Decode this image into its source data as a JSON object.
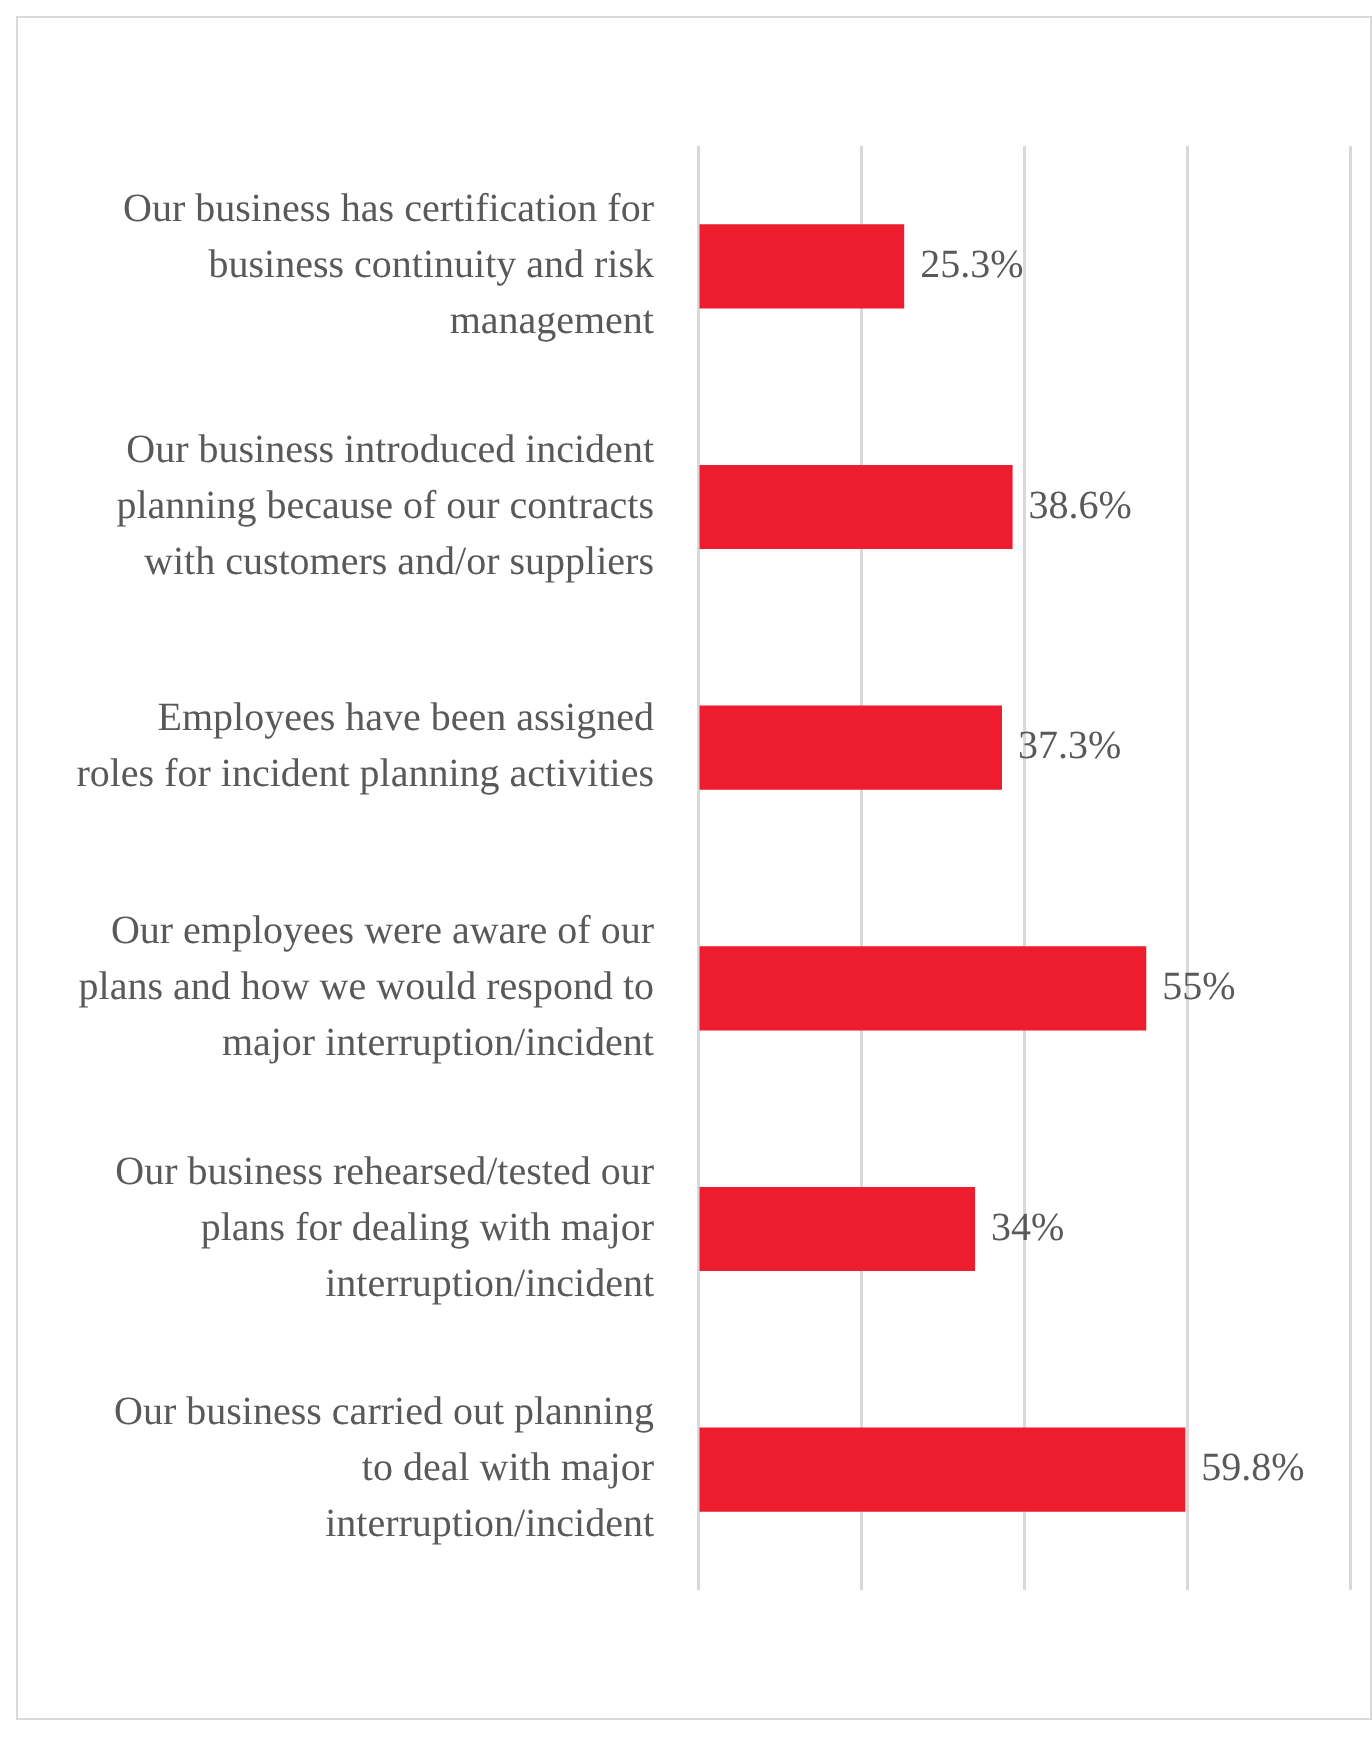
{
  "chart_data": {
    "type": "bar",
    "orientation": "horizontal",
    "categories": [
      "Our business has certification for business continuity and risk management",
      "Our business introduced incident planning because of our contracts with customers and/or suppliers",
      "Employees have been assigned roles for incident planning activities",
      "Our employees were aware of our plans and how we would respond to major interruption/incident",
      "Our business rehearsed/tested our plans for dealing with major interruption/incident",
      "Our business carried out planning to deal with major interruption/incident"
    ],
    "values": [
      25.3,
      38.6,
      37.3,
      55,
      34,
      59.8
    ],
    "value_labels": [
      "25.3%",
      "38.6%",
      "37.3%",
      "55%",
      "34%",
      "59.8%"
    ],
    "color": "#ed1c2e",
    "xlim": [
      0,
      80
    ],
    "grid": "x",
    "tick_labels": "y",
    "legend": false
  }
}
